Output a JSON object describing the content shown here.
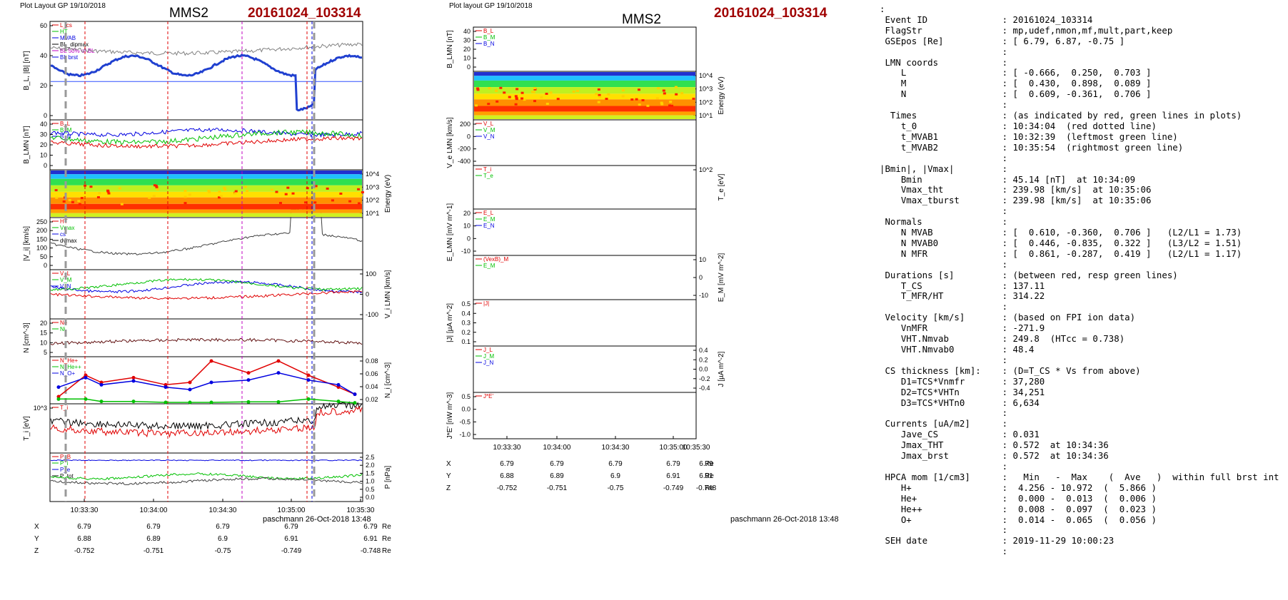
{
  "left": {
    "header": "Plot Layout GP 19/10/2018",
    "probe": "MMS2",
    "event": "20161024_103314",
    "footer": "paschmann 26-Oct-2018 13:48",
    "time_ticks": [
      "10:33:30",
      "10:34:00",
      "10:34:30",
      "10:35:00",
      "10:35:30"
    ],
    "coords": {
      "labels": [
        "X",
        "Y",
        "Z"
      ],
      "unit": "Re",
      "X": [
        "6.79",
        "6.79",
        "6.79",
        "6.79",
        "6.79"
      ],
      "Y": [
        "6.88",
        "6.89",
        "6.9",
        "6.91",
        "6.91"
      ],
      "Z": [
        "-0.752",
        "-0.751",
        "-0.75",
        "-0.749",
        "-0.748"
      ]
    },
    "panels": [
      {
        "ylabel": "B_L, |B| [nT]",
        "ticks": [
          "60",
          "40",
          "20",
          "0"
        ],
        "legend": [
          "L_cs",
          "HT",
          "MVAB",
          "BL_dipmax",
          "BL 50% of BL",
          "BL brst"
        ]
      },
      {
        "ylabel": "B_LMN [nT]",
        "ticks": [
          "40",
          "30",
          "20",
          "10",
          "0"
        ],
        "legend": [
          "B_L",
          "B_M",
          "B_N"
        ]
      },
      {
        "ylabel_right": "Energy (eV)",
        "ticks_right": [
          "10^4",
          "10^3",
          "10^2",
          "10^1"
        ]
      },
      {
        "ylabel": "|V_i| [km/s]",
        "ticks": [
          "250",
          "200",
          "150",
          "100",
          "50",
          "0"
        ],
        "legend": [
          "HT",
          "Vmax",
          "cs",
          "dvmax"
        ]
      },
      {
        "ylabel_right": "V_i LMN [km/s]",
        "ticks_right": [
          "100",
          "0",
          "-100"
        ],
        "legend": [
          "V_L",
          "V_M",
          "V_N"
        ]
      },
      {
        "ylabel": "N [cm^-3]",
        "ticks": [
          "20",
          "15",
          "10",
          "5"
        ],
        "legend": [
          "Ne",
          "Ni"
        ]
      },
      {
        "ylabel_right": "N_i [cm^-3]",
        "ticks_right": [
          "0.08",
          "0.06",
          "0.04",
          "0.02"
        ],
        "legend": [
          "N_He+",
          "N_He++",
          "N_O+"
        ]
      },
      {
        "ylabel": "T_i [eV]",
        "ticks": [
          "10^3"
        ],
        "legend": [
          "T_i"
        ]
      },
      {
        "ylabel_right": "P [nPa]",
        "ticks_right": [
          "2.5",
          "2.0",
          "1.5",
          "1.0",
          "0.5",
          "0.0"
        ],
        "legend": [
          "P_B",
          "P_i",
          "P_e",
          "P_tot"
        ]
      }
    ]
  },
  "middle": {
    "header": "Plot layout GP 19/10/2018",
    "probe": "MMS2",
    "event": "20161024_103314",
    "footer": "paschmann 26-Oct-2018 13:48",
    "time_ticks": [
      "10:33:30",
      "10:34:00",
      "10:34:30",
      "10:35:00",
      "10:35:30"
    ],
    "coords": {
      "labels": [
        "X",
        "Y",
        "Z"
      ],
      "unit": "Re",
      "X": [
        "6.79",
        "6.79",
        "6.79",
        "6.79",
        "6.79"
      ],
      "Y": [
        "6.88",
        "6.89",
        "6.9",
        "6.91",
        "6.91"
      ],
      "Z": [
        "-0.752",
        "-0.751",
        "-0.75",
        "-0.749",
        "-0.748"
      ]
    },
    "panels": [
      {
        "ylabel": "B_LMN [nT]",
        "ticks": [
          "40",
          "30",
          "20",
          "10",
          "0"
        ],
        "legend": [
          "B_L",
          "B_M",
          "B_N"
        ]
      },
      {
        "ylabel_right": "Energy (eV)",
        "ticks_right": [
          "10^4",
          "10^3",
          "10^2",
          "10^1"
        ]
      },
      {
        "ylabel": "V_e LMN [km/s]",
        "ticks": [
          "200",
          "0",
          "-200",
          "-400"
        ],
        "legend": [
          "V_L",
          "V_M",
          "V_N"
        ]
      },
      {
        "ylabel_right": "T_e [eV]",
        "ticks_right": [
          "10^2"
        ],
        "legend": [
          "T_i",
          "T_e"
        ]
      },
      {
        "ylabel": "E_LMN [mV m^-1]",
        "ticks": [
          "20",
          "10",
          "0",
          "-10"
        ],
        "legend": [
          "E_L",
          "E_M",
          "E_N"
        ]
      },
      {
        "ylabel_right": "E_M [mV m^-2]",
        "ticks_right": [
          "10",
          "0",
          "-10"
        ],
        "legend": [
          "(VexB)_M",
          "E_M"
        ]
      },
      {
        "ylabel": "|J| [µA m^-2]",
        "ticks": [
          "0.5",
          "0.4",
          "0.3",
          "0.2",
          "0.1"
        ],
        "legend": [
          "|J|"
        ]
      },
      {
        "ylabel_right": "J [µA m^-2]",
        "ticks_right": [
          "0.4",
          "0.2",
          "0.0",
          "-0.2",
          "-0.4"
        ],
        "legend": [
          "J_L",
          "J_M",
          "J_N"
        ]
      },
      {
        "ylabel": "J*E' [nW m^-3]",
        "ticks": [
          "0.5",
          "0.0",
          "-0.5",
          "-1.0"
        ],
        "legend": [
          "J*E'"
        ]
      }
    ]
  },
  "info_text": ":\n Event ID              : 20161024_103314\n FlagStr               : mp,udef,nmon,mf,mult,part,keep\n GSEpos [Re]           : [ 6.79, 6.87, -0.75 ]\n                       :\n LMN coords            :\n    L                  : [ -0.666,  0.250,  0.703 ]\n    M                  : [  0.430,  0.898,  0.089 ]\n    N                  : [  0.609, -0.361,  0.706 ]\n                       :\n  Times                : (as indicated by red, green lines in plots)\n    t_0                : 10:34:04  (red dotted line)\n    t_MVAB1            : 10:32:39  (leftmost green line)\n    t_MVAB2            : 10:35:54  (rightmost green line)\n                       :\n|Bmin|, |Vmax|         :\n    Bmin               : 45.14 [nT]  at 10:34:09\n    Vmax_tht           : 239.98 [km/s]  at 10:35:06\n    Vmax_tburst        : 239.98 [km/s]  at 10:35:06\n                       :\n Normals               :\n    N MVAB             : [  0.610, -0.360,  0.706 ]   (L2/L1 = 1.73)\n    N MVAB0            : [  0.446, -0.835,  0.322 ]   (L3/L2 = 1.51)\n    N MFR              : [  0.861, -0.287,  0.419 ]   (L2/L1 = 1.17)\n                       :\n Durations [s]         : (between red, resp green lines)\n    T_CS               : 137.11\n    T_MFR/HT           : 314.22\n                       :\n Velocity [km/s]       : (based on FPI ion data)\n    VnMFR              : -271.9\n    VHT.Nmvab          : 249.8  (HTcc = 0.738)\n    VHT.Nmvab0         : 48.4\n                       :\n CS thickness [km]:    : (D=T_CS * Vs from above)\n    D1=TCS*Vnmfr       : 37,280\n    D2=TCS*VHTn        : 34,251\n    D3=TCS*VHTn0       : 6,634\n                       :\n Currents [uA/m2]      :\n    Jave_CS            : 0.031\n    Jmax_THT           : 0.572  at 10:34:36\n    Jmax_brst          : 0.572  at 10:34:36\n                       :\n HPCA mom [1/cm3]      :   Min   -  Max    (  Ave   )  within full brst int\n    H+                 :  4.256 - 10.972  (  5.866 )\n    He+                :  0.000 -  0.013  (  0.006 )\n    He++               :  0.008 -  0.097  (  0.023 )\n    O+                 :  0.014 -  0.065  (  0.056 )\n                       :\n SEH date              : 2019-11-29 10:00:23\n                       :",
  "colors": {
    "red": "#e00000",
    "green": "#00c000",
    "blue": "#0000e0",
    "black": "#000000",
    "magenta": "#c000c0",
    "title_red": "#a00000"
  },
  "chart_data": [
    {
      "type": "line",
      "title": "MMS2 20161024_103314",
      "ylabel": "B_L, |B| [nT]",
      "ylim": [
        0,
        65
      ],
      "series": [
        {
          "name": "|B|",
          "values": [
            58,
            55,
            52,
            50,
            49,
            50,
            51,
            52,
            52,
            53,
            52,
            50
          ]
        },
        {
          "name": "BL brst",
          "values": [
            40,
            35,
            33,
            31,
            30,
            29,
            30,
            32,
            31,
            28,
            12,
            28
          ]
        }
      ],
      "x": [
        "10:33:15",
        "10:33:30",
        "10:33:45",
        "10:34:00",
        "10:34:15",
        "10:34:30",
        "10:34:45",
        "10:35:00",
        "10:35:05",
        "10:35:10",
        "10:35:15",
        "10:35:35"
      ]
    },
    {
      "type": "line",
      "ylabel": "|V_i| [km/s]",
      "ylim": [
        0,
        250
      ],
      "series": [
        {
          "name": "HT",
          "values": [
            130,
            100,
            60,
            40,
            20,
            40,
            70,
            120,
            240,
            150,
            80,
            90
          ]
        }
      ],
      "x": [
        "10:33:15",
        "10:33:30",
        "10:33:45",
        "10:34:00",
        "10:34:15",
        "10:34:30",
        "10:34:45",
        "10:35:00",
        "10:35:05",
        "10:35:10",
        "10:35:25",
        "10:35:35"
      ]
    },
    {
      "type": "line",
      "ylabel": "N_i [cm^-3]",
      "ylim": [
        0,
        0.09
      ],
      "series": [
        {
          "name": "N_He++",
          "values": [
            0.015,
            0.06,
            0.045,
            0.055,
            0.04,
            0.045,
            0.09,
            0.065,
            0.09,
            0.06,
            0.035,
            0.02
          ]
        },
        {
          "name": "N_O+",
          "values": [
            0.035,
            0.055,
            0.04,
            0.048,
            0.035,
            0.03,
            0.045,
            0.05,
            0.065,
            0.05,
            0.04,
            0.02
          ]
        },
        {
          "name": "N_He+",
          "values": [
            0.01,
            0.01,
            0.005,
            0.005,
            0.003,
            0.003,
            0.003,
            0.004,
            0.004,
            0.01,
            0.005,
            0.002
          ]
        }
      ],
      "x": [
        "10:33:18",
        "10:33:27",
        "10:33:42",
        "10:33:55",
        "10:34:08",
        "10:34:22",
        "10:34:35",
        "10:34:48",
        "10:35:00",
        "10:35:12",
        "10:35:24",
        "10:35:33"
      ]
    },
    {
      "type": "line",
      "ylabel": "P [nPa]",
      "ylim": [
        0,
        2.5
      ],
      "series": [
        {
          "name": "P_tot",
          "values": [
            2.1,
            2.0,
            2.0,
            1.95,
            1.95,
            1.95,
            1.9,
            1.9,
            2.0,
            1.9,
            1.9
          ]
        },
        {
          "name": "P_B",
          "values": [
            1.3,
            1.2,
            1.1,
            1.0,
            1.05,
            1.1,
            1.15,
            1.2,
            1.0,
            1.2,
            1.2
          ]
        },
        {
          "name": "P_i",
          "values": [
            1.0,
            0.9,
            0.85,
            0.9,
            0.9,
            0.95,
            0.85,
            0.8,
            0.9,
            0.7,
            0.6
          ]
        }
      ],
      "x": [
        "10:33:15",
        "10:33:30",
        "10:33:45",
        "10:34:00",
        "10:34:15",
        "10:34:30",
        "10:34:45",
        "10:35:00",
        "10:35:10",
        "10:35:25",
        "10:35:35"
      ]
    }
  ]
}
